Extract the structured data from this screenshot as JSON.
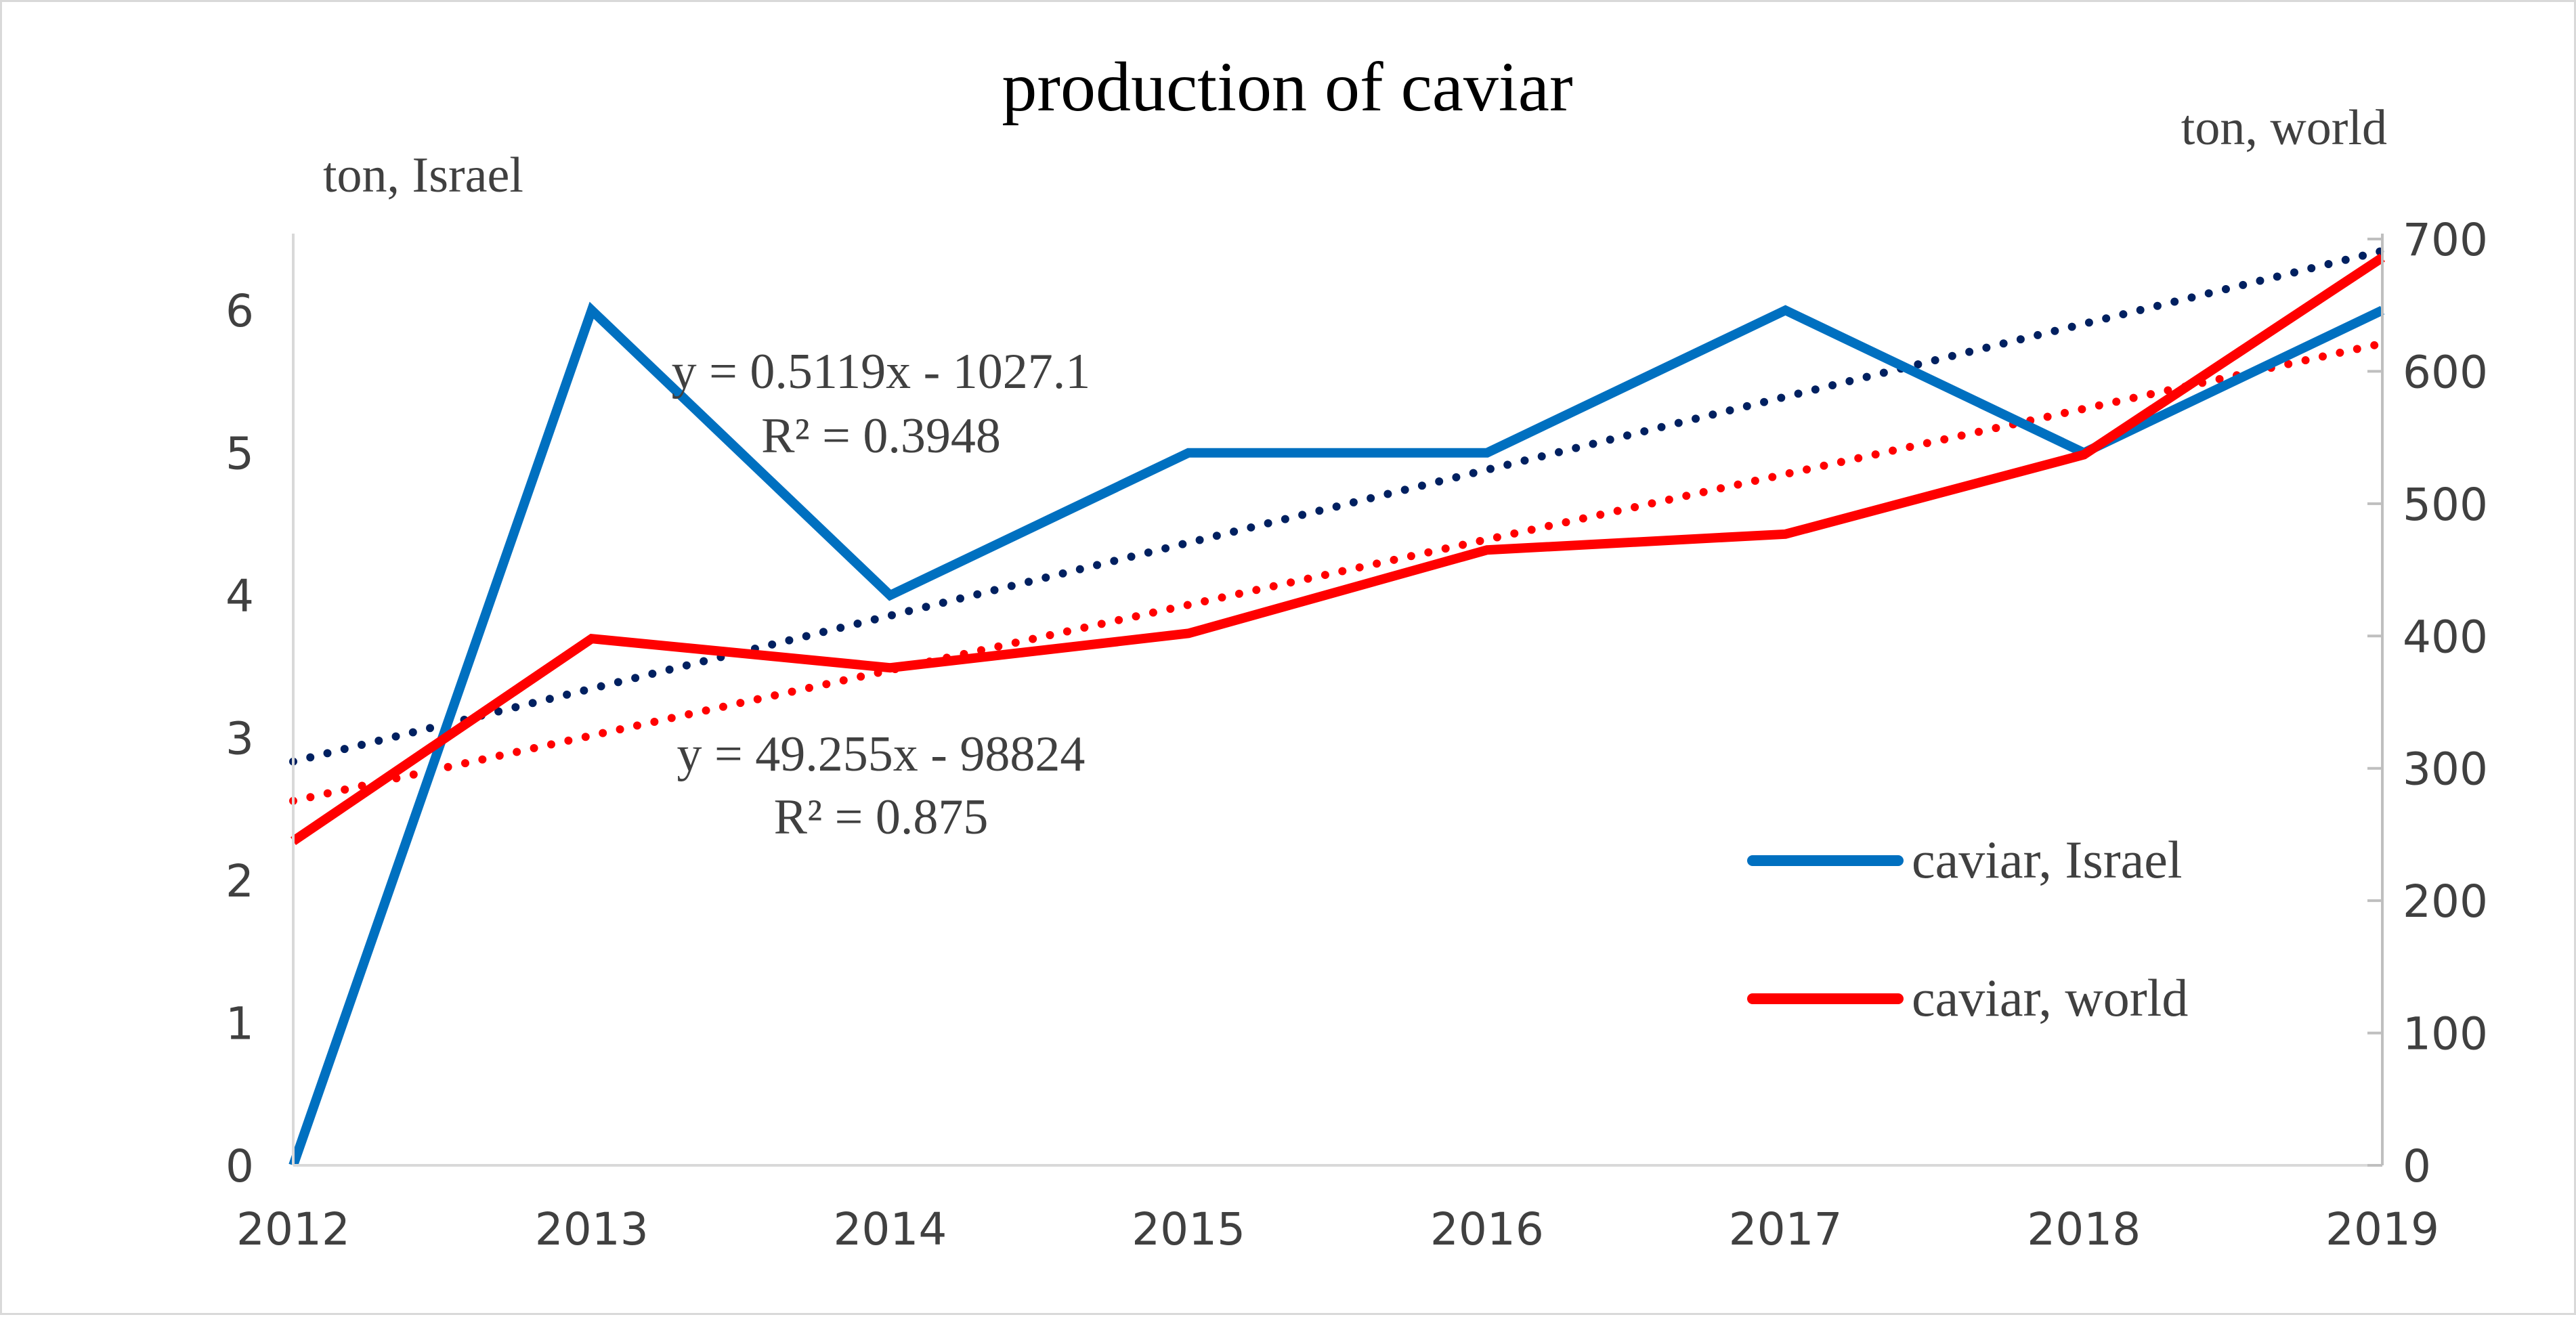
{
  "chart_data": {
    "type": "line",
    "title": "production of caviar",
    "ylabel_left": "ton, Israel",
    "ylabel_right": "ton, world",
    "xlabel": "",
    "categories": [
      "2012",
      "2013",
      "2014",
      "2015",
      "2016",
      "2017",
      "2018",
      "2019"
    ],
    "y_left_range": [
      0,
      6.5
    ],
    "y_left_ticks": [
      "0",
      "1",
      "2",
      "3",
      "4",
      "5",
      "6"
    ],
    "y_right_range": [
      0,
      700
    ],
    "y_right_ticks": [
      "0",
      "100",
      "200",
      "300",
      "400",
      "500",
      "600",
      "700"
    ],
    "grid": false,
    "legend_position": "bottom-right",
    "series": [
      {
        "name": "caviar, Israel",
        "axis": "left",
        "color": "#0070c0",
        "values": [
          0,
          6,
          4,
          5,
          5,
          6,
          5,
          6
        ]
      },
      {
        "name": "caviar, world",
        "axis": "right",
        "color": "#ff0000",
        "values": [
          245,
          398,
          376,
          402,
          465,
          477,
          537,
          686
        ]
      }
    ],
    "trendlines": [
      {
        "series": "caviar, Israel",
        "axis": "left",
        "color": "#002060",
        "style": "dotted",
        "slope": 0.5119,
        "intercept": -1027.1,
        "equation": "y = 0.5119x - 1027.1",
        "r2": "R² = 0.3948"
      },
      {
        "series": "caviar, world",
        "axis": "right",
        "color": "#ff0000",
        "style": "dotted",
        "slope": 49.255,
        "intercept": -98824,
        "equation": "y = 49.255x - 98824",
        "r2": "R² = 0.875"
      }
    ]
  }
}
